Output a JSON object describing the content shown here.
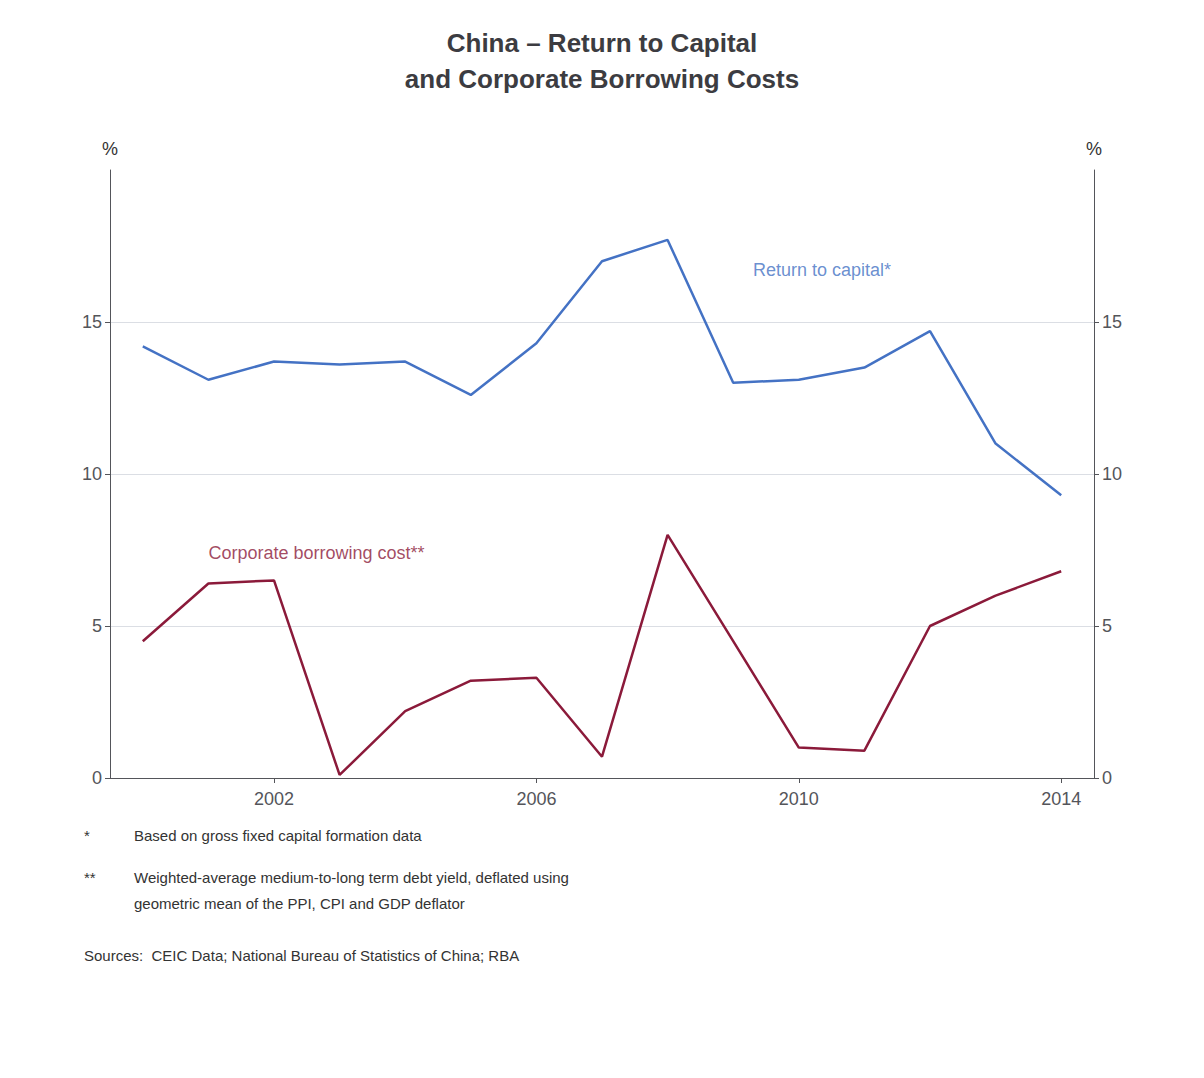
{
  "chart_data": {
    "type": "line",
    "title": "China – Return to Capital\nand Corporate Borrowing Costs",
    "x": [
      2000,
      2001,
      2002,
      2003,
      2004,
      2005,
      2006,
      2007,
      2008,
      2009,
      2010,
      2011,
      2012,
      2013,
      2014
    ],
    "series": [
      {
        "color": "#4472C4",
        "values": [
          14.2,
          13.1,
          13.7,
          13.6,
          13.7,
          12.6,
          14.3,
          17.0,
          17.7,
          13.0,
          13.1,
          13.5,
          14.7,
          11.0,
          9.3
        ]
      },
      {
        "color": "#8B1A3A",
        "values": [
          4.5,
          6.4,
          6.5,
          0.1,
          2.2,
          3.2,
          3.3,
          0.7,
          8.0,
          4.5,
          1.0,
          0.9,
          5.0,
          6.0,
          6.8
        ]
      }
    ],
    "xlim": [
      1999.5,
      2014.5
    ],
    "xticks": [
      2002,
      2006,
      2010,
      2014
    ],
    "ylim": [
      0,
      20
    ],
    "yticks": [
      0,
      5,
      10,
      15
    ],
    "y2lim": [
      0,
      20
    ],
    "y2ticks": [
      0,
      5,
      10,
      15
    ],
    "ylabel": "%",
    "y2label": "%",
    "grid": true,
    "annotations": [
      {
        "text": "Return to capital*",
        "x": 2009.3,
        "y": 16.7,
        "color": "#4472C4"
      },
      {
        "text": "Corporate borrowing cost**",
        "x": 2001.0,
        "y": 7.4,
        "color": "#8B1A3A"
      }
    ],
    "footnotes": [
      {
        "symbol": "*",
        "lines": [
          "Based on gross fixed capital formation data"
        ]
      },
      {
        "symbol": "**",
        "lines": [
          "Weighted-average medium-to-long term debt yield, deflated using",
          "geometric mean of the PPI, CPI and GDP deflator"
        ]
      }
    ],
    "source": "Sources:  CEIC Data; National Bureau of Statistics of China; RBA"
  }
}
